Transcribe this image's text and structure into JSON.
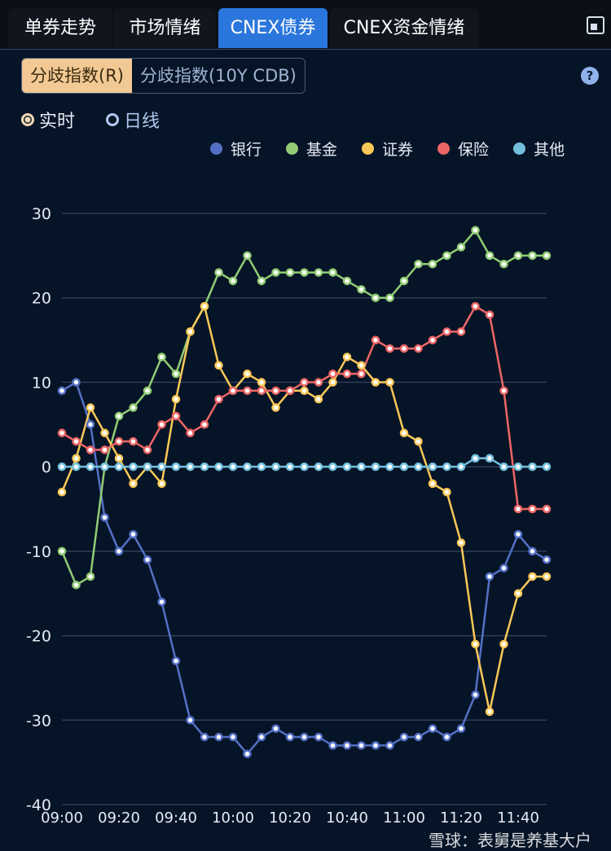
{
  "tabs": [
    {
      "label": "单券走势"
    },
    {
      "label": "市场情绪"
    },
    {
      "label": "CNEX债券",
      "active": true
    },
    {
      "label": "CNEX资金情绪"
    }
  ],
  "segment": {
    "options": [
      "分歧指数(R)",
      "分歧指数(10Y CDB)"
    ],
    "selected": 0
  },
  "help_label": "?",
  "radios": [
    {
      "label": "实时",
      "selected": true
    },
    {
      "label": "日线",
      "selected": false
    }
  ],
  "watermark": "雪球：表舅是养基大户",
  "colors": {
    "active_tab": "#2a76dc",
    "background": "#061427"
  },
  "chart_data": {
    "type": "line",
    "x": [
      "09:00",
      "09:05",
      "09:10",
      "09:15",
      "09:20",
      "09:25",
      "09:30",
      "09:35",
      "09:40",
      "09:45",
      "09:50",
      "09:55",
      "10:00",
      "10:05",
      "10:10",
      "10:15",
      "10:20",
      "10:25",
      "10:30",
      "10:35",
      "10:40",
      "10:45",
      "10:50",
      "10:55",
      "11:00",
      "11:05",
      "11:10",
      "11:15",
      "11:20",
      "11:25",
      "11:30",
      "11:35",
      "11:40",
      "11:45",
      "11:50"
    ],
    "x_tick_labels": [
      "09:00",
      "09:20",
      "09:40",
      "10:00",
      "10:20",
      "10:40",
      "11:00",
      "11:20",
      "11:40"
    ],
    "y_tick_labels": [
      "30",
      "20",
      "10",
      "0",
      "-10",
      "-20",
      "-30",
      "-40"
    ],
    "ylim": [
      -40,
      30
    ],
    "grid": true,
    "legend": "top-right",
    "series": [
      {
        "name": "银行",
        "color": "#5470c6",
        "values": [
          9,
          10,
          5,
          -6,
          -10,
          -8,
          -11,
          -16,
          -23,
          -30,
          -32,
          -32,
          -32,
          -34,
          -32,
          -31,
          -32,
          -32,
          -32,
          -33,
          -33,
          -33,
          -33,
          -33,
          -32,
          -32,
          -31,
          -32,
          -31,
          -27,
          -13,
          -12,
          -8,
          -10,
          -11
        ]
      },
      {
        "name": "基金",
        "color": "#91cc75",
        "values": [
          -10,
          -14,
          -13,
          0,
          6,
          7,
          9,
          13,
          11,
          16,
          19,
          23,
          22,
          25,
          22,
          23,
          23,
          23,
          23,
          23,
          22,
          21,
          20,
          20,
          22,
          24,
          24,
          25,
          26,
          28,
          25,
          24,
          25,
          25,
          25
        ]
      },
      {
        "name": "证券",
        "color": "#fac858",
        "values": [
          -3,
          1,
          7,
          4,
          1,
          -2,
          0,
          -2,
          8,
          16,
          19,
          12,
          9,
          11,
          10,
          7,
          9,
          9,
          8,
          10,
          13,
          12,
          10,
          10,
          4,
          3,
          -2,
          -3,
          -9,
          -21,
          -29,
          -21,
          -15,
          -13,
          -13
        ]
      },
      {
        "name": "保险",
        "color": "#ee6666",
        "values": [
          4,
          3,
          2,
          2,
          3,
          3,
          2,
          5,
          6,
          4,
          5,
          8,
          9,
          9,
          9,
          9,
          9,
          10,
          10,
          11,
          11,
          11,
          15,
          14,
          14,
          14,
          15,
          16,
          16,
          19,
          18,
          9,
          -5,
          -5,
          -5
        ]
      },
      {
        "name": "其他",
        "color": "#73c0de",
        "values": [
          0,
          0,
          0,
          0,
          0,
          0,
          0,
          0,
          0,
          0,
          0,
          0,
          0,
          0,
          0,
          0,
          0,
          0,
          0,
          0,
          0,
          0,
          0,
          0,
          0,
          0,
          0,
          0,
          0,
          1,
          1,
          0,
          0,
          0,
          0
        ]
      }
    ]
  }
}
